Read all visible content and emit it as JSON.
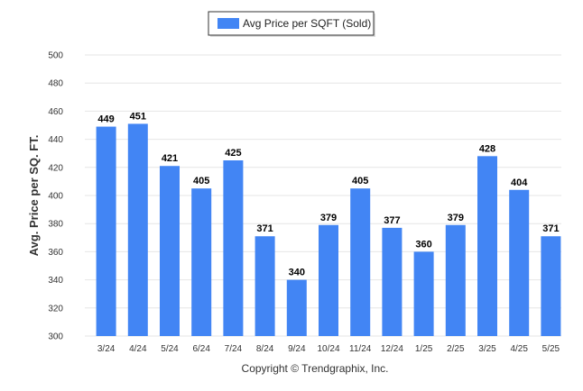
{
  "chart_data": {
    "type": "bar",
    "categories": [
      "3/24",
      "4/24",
      "5/24",
      "6/24",
      "7/24",
      "8/24",
      "9/24",
      "10/24",
      "11/24",
      "12/24",
      "1/25",
      "2/25",
      "3/25",
      "4/25",
      "5/25"
    ],
    "series": [
      {
        "name": "Avg Price per SQFT (Sold)",
        "values": [
          449,
          451,
          421,
          405,
          425,
          371,
          340,
          379,
          405,
          377,
          360,
          379,
          428,
          404,
          371
        ]
      }
    ],
    "ylabel": "Avg. Price per SQ. FT.",
    "ylim": [
      300,
      500
    ],
    "yticks": [
      300,
      320,
      340,
      360,
      380,
      400,
      420,
      440,
      460,
      480,
      500
    ],
    "grid": true,
    "legend_position": "top-center",
    "bar_color": "#4285f4",
    "credit": "Copyright © Trendgraphix, Inc."
  }
}
